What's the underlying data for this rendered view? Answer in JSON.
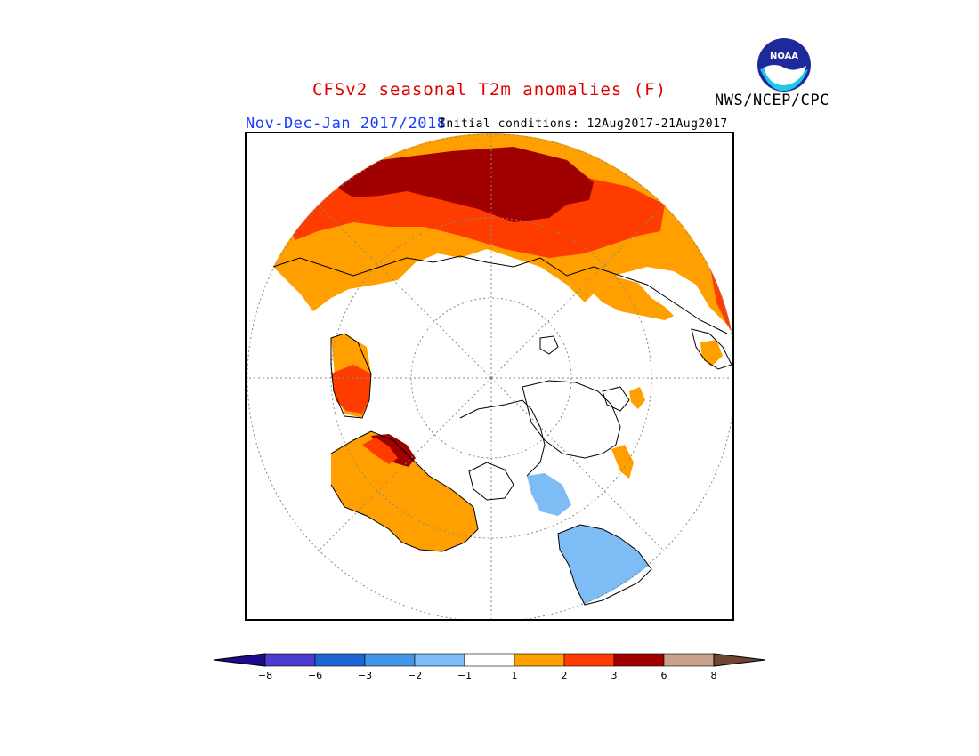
{
  "header": {
    "title": "CFSv2 seasonal T2m anomalies (F)",
    "season": "Nov-Dec-Jan 2017/2018",
    "initial_conditions": "Initial conditions: 12Aug2017-21Aug2017",
    "agency": "NWS/NCEP/CPC",
    "logo_text": "NOAA"
  },
  "legend": {
    "colors": [
      "#1e0a8c",
      "#4b3bd0",
      "#1e64d2",
      "#4196ea",
      "#7ebcf5",
      "#ffffff",
      "#ffa000",
      "#ff3c00",
      "#a00000",
      "#c8a08c",
      "#6e4632"
    ],
    "tick_labels": [
      "−8",
      "−6",
      "−3",
      "−2",
      "−1",
      "1",
      "2",
      "3",
      "6",
      "8"
    ]
  },
  "map": {
    "projection": "north polar stereographic",
    "colors": {
      "dark_red": "#a00000",
      "red": "#ff3c00",
      "orange": "#ffa000",
      "light_blue": "#7ebcf5",
      "coast": "#000000",
      "grid": "#888888"
    }
  }
}
